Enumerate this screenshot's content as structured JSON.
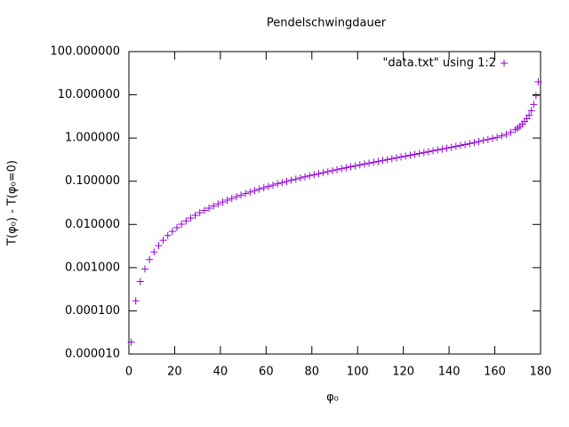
{
  "chart_data": {
    "type": "scatter",
    "title": "Pendelschwingdauer",
    "x_label": "φ₀",
    "y_label": "T(φ₀) - T(φ₀=0)",
    "log_y": true,
    "legend": "top-right",
    "xlim": [
      0,
      180
    ],
    "xticks": [
      0,
      20,
      40,
      60,
      80,
      100,
      120,
      140,
      160,
      180
    ],
    "ylim": [
      1e-05,
      100
    ],
    "yticks": [
      {
        "value": 1e-05,
        "label": "0.000010"
      },
      {
        "value": 0.0001,
        "label": "0.000100"
      },
      {
        "value": 0.001,
        "label": "0.001000"
      },
      {
        "value": 0.01,
        "label": "0.010000"
      },
      {
        "value": 0.1,
        "label": "0.100000"
      },
      {
        "value": 1,
        "label": "1.000000"
      },
      {
        "value": 10,
        "label": "10.000000"
      },
      {
        "value": 100,
        "label": "100.000000"
      }
    ],
    "series": [
      {
        "name": "\"data.txt\" using 1:2",
        "color": "#9400d3",
        "x": [
          1,
          3,
          5,
          7,
          9,
          11,
          13,
          15,
          17,
          19,
          21,
          23,
          25,
          27,
          29,
          31,
          33,
          35,
          37,
          39,
          41,
          43,
          45,
          47,
          49,
          51,
          53,
          55,
          57,
          59,
          61,
          63,
          65,
          67,
          69,
          71,
          73,
          75,
          77,
          79,
          81,
          83,
          85,
          87,
          89,
          91,
          93,
          95,
          97,
          99,
          101,
          103,
          105,
          107,
          109,
          111,
          113,
          115,
          117,
          119,
          121,
          123,
          125,
          127,
          129,
          131,
          133,
          135,
          137,
          139,
          141,
          143,
          145,
          147,
          149,
          151,
          153,
          155,
          157,
          159,
          161,
          163,
          165,
          167,
          169,
          170,
          171,
          172,
          173,
          174,
          175,
          176,
          177,
          178,
          179
        ],
        "values": [
          1.9e-05,
          0.000171,
          0.000476,
          0.000933,
          0.001544,
          0.002309,
          0.003227,
          0.004301,
          0.00553,
          0.006916,
          0.00846,
          0.01016,
          0.01203,
          0.01406,
          0.01625,
          0.01861,
          0.02113,
          0.02383,
          0.02669,
          0.02974,
          0.03296,
          0.03636,
          0.03993,
          0.04375,
          0.04772,
          0.05189,
          0.05625,
          0.06081,
          0.0656,
          0.07058,
          0.07578,
          0.08121,
          0.08687,
          0.09276,
          0.09889,
          0.10527,
          0.1119,
          0.119,
          0.1262,
          0.1337,
          0.1415,
          0.1496,
          0.158,
          0.1667,
          0.1757,
          0.1849,
          0.1946,
          0.2047,
          0.2153,
          0.2264,
          0.2379,
          0.2496,
          0.2619,
          0.2748,
          0.2883,
          0.3023,
          0.3167,
          0.3318,
          0.3477,
          0.3643,
          0.3816,
          0.3997,
          0.4185,
          0.4383,
          0.4591,
          0.481,
          0.5041,
          0.5284,
          0.5538,
          0.5806,
          0.6094,
          0.6405,
          0.6731,
          0.7075,
          0.7435,
          0.7837,
          0.8287,
          0.8762,
          0.9265,
          0.9796,
          1.04,
          1.12,
          1.22,
          1.35,
          1.55,
          1.7,
          1.85,
          2.1,
          2.4,
          2.8,
          3.4,
          4.3,
          6,
          9.5,
          20
        ]
      }
    ]
  }
}
